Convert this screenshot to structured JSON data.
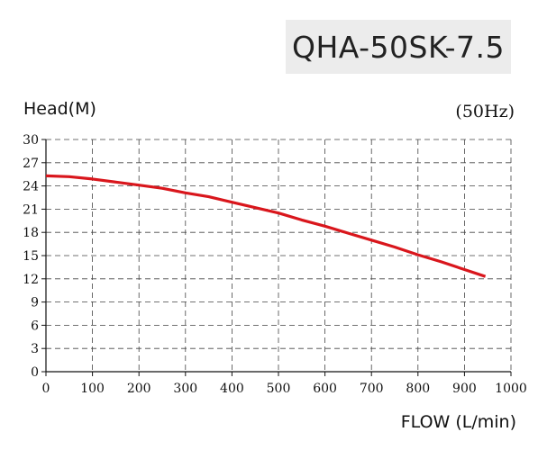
{
  "model": "QHA-50SK-7.5",
  "frequency": "(50Hz)",
  "chart_data": {
    "type": "line",
    "title": "QHA-50SK-7.5",
    "subtitle": "(50Hz)",
    "xlabel": "FLOW (L/min)",
    "ylabel": "Head(M)",
    "xlim": [
      0,
      1000
    ],
    "ylim": [
      0,
      30
    ],
    "xticks": [
      0,
      100,
      200,
      300,
      400,
      500,
      600,
      700,
      800,
      900,
      1000
    ],
    "yticks": [
      0,
      3,
      6,
      9,
      12,
      15,
      18,
      21,
      24,
      27,
      30
    ],
    "grid": true,
    "line_color": "#d9161c",
    "series": [
      {
        "x": [
          0,
          50,
          100,
          150,
          200,
          250,
          300,
          350,
          400,
          450,
          500,
          550,
          600,
          650,
          700,
          750,
          800,
          850,
          900,
          945
        ],
        "values": [
          25.3,
          25.2,
          24.9,
          24.5,
          24.1,
          23.7,
          23.1,
          22.6,
          21.9,
          21.2,
          20.5,
          19.6,
          18.8,
          17.9,
          17.0,
          16.1,
          15.1,
          14.2,
          13.2,
          12.3
        ]
      }
    ]
  }
}
